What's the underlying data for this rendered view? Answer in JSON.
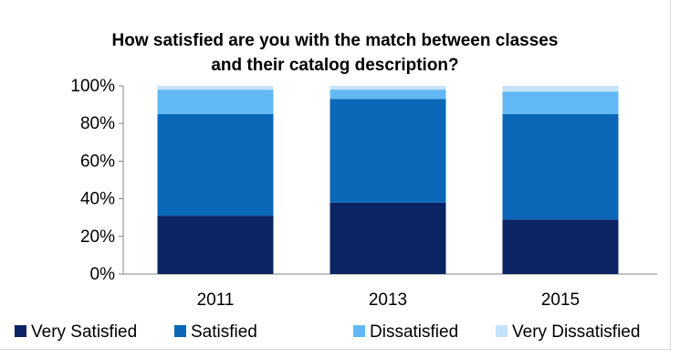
{
  "chart_data": {
    "type": "bar",
    "stacked": true,
    "title_lines": [
      "How satisfied are you with the match between classes",
      "and their catalog description?"
    ],
    "categories": [
      "2011",
      "2013",
      "2015"
    ],
    "series": [
      {
        "name": "Very Satisfied",
        "color": "#0b2463",
        "values": [
          31,
          38,
          29
        ]
      },
      {
        "name": "Satisfied",
        "color": "#0b67b8",
        "values": [
          54,
          55,
          56
        ]
      },
      {
        "name": "Dissatisfied",
        "color": "#61b8f2",
        "values": [
          13,
          5,
          12
        ]
      },
      {
        "name": "Very Dissatisfied",
        "color": "#c5e3fa",
        "values": [
          2,
          2,
          3
        ]
      }
    ],
    "ylim": [
      0,
      100
    ],
    "y_ticks": [
      0,
      20,
      40,
      60,
      80,
      100
    ],
    "y_tick_labels": [
      "0%",
      "20%",
      "40%",
      "60%",
      "80%",
      "100%"
    ],
    "grid": false,
    "legend_position": "bottom"
  }
}
